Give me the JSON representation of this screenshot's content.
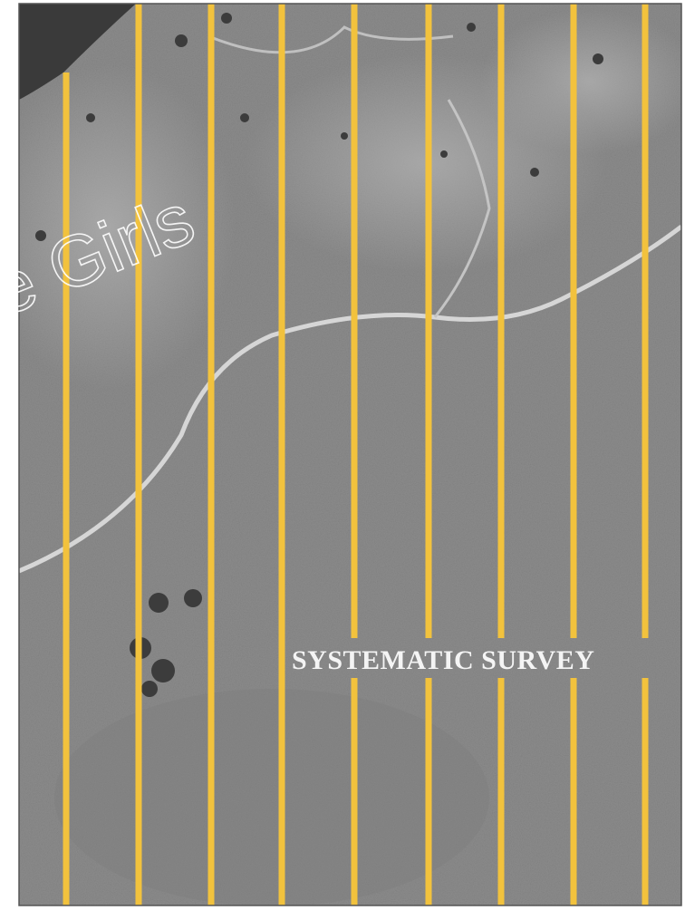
{
  "image": {
    "label": "SYSTEMATIC SURVEY",
    "watermark": "e Girls"
  }
}
